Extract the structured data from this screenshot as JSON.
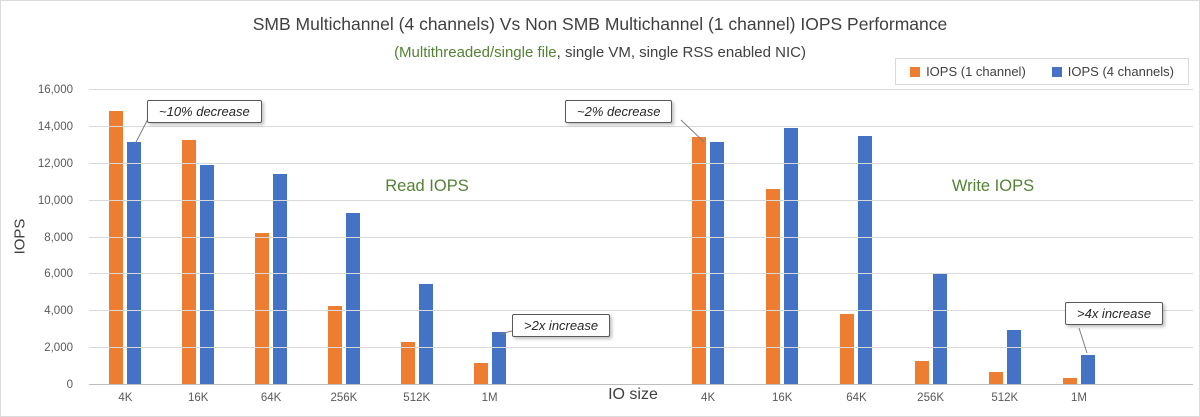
{
  "chart": {
    "title": "SMB Multichannel (4 channels) Vs Non SMB Multichannel (1 channel) IOPS Performance",
    "subtitle_green": "(Multithreaded/single file",
    "subtitle_rest": ", single VM, single RSS enabled NIC)",
    "ylabel": "IOPS",
    "xlabel": "IO size",
    "legend": [
      {
        "label": "IOPS (1 channel)",
        "color": "#ED7D31"
      },
      {
        "label": "IOPS (4 channels)",
        "color": "#4472C4"
      }
    ],
    "colors": {
      "orange": "#ED7D31",
      "blue": "#4472C4",
      "green": "#548235",
      "grid": "#D9D9D9"
    }
  },
  "chart_data": {
    "type": "bar",
    "title": "SMB Multichannel (4 channels) Vs Non SMB Multichannel (1 channel) IOPS Performance",
    "subtitle": "(Multithreaded/single file, single VM, single RSS enabled NIC)",
    "xlabel": "IO size",
    "ylabel": "IOPS",
    "ylim": [
      0,
      16000
    ],
    "ytick_step": 2000,
    "yticks": [
      "0",
      "2,000",
      "4,000",
      "6,000",
      "8,000",
      "10,000",
      "12,000",
      "14,000",
      "16,000"
    ],
    "legend_position": "top-right",
    "grid": true,
    "groups": [
      {
        "label": "Read IOPS",
        "categories": [
          "4K",
          "16K",
          "64K",
          "256K",
          "512K",
          "1M"
        ],
        "series": [
          {
            "name": "IOPS (1 channel)",
            "values": [
              14800,
              13250,
              8200,
              4250,
              2300,
              1150
            ]
          },
          {
            "name": "IOPS (4 channels)",
            "values": [
              13100,
              11900,
              11400,
              9300,
              5450,
              2800
            ]
          }
        ]
      },
      {
        "label": "Write IOPS",
        "categories": [
          "4K",
          "16K",
          "64K",
          "256K",
          "512K",
          "1M"
        ],
        "series": [
          {
            "name": "IOPS (1 channel)",
            "values": [
              13400,
              10550,
              3800,
              1250,
              650,
              300
            ]
          },
          {
            "name": "IOPS (4 channels)",
            "values": [
              13100,
              13900,
              13450,
              6000,
              2950,
              1550
            ]
          }
        ]
      }
    ],
    "annotations": [
      "~10% decrease",
      "~2% decrease",
      ">2x increase",
      ">4x increase"
    ]
  }
}
